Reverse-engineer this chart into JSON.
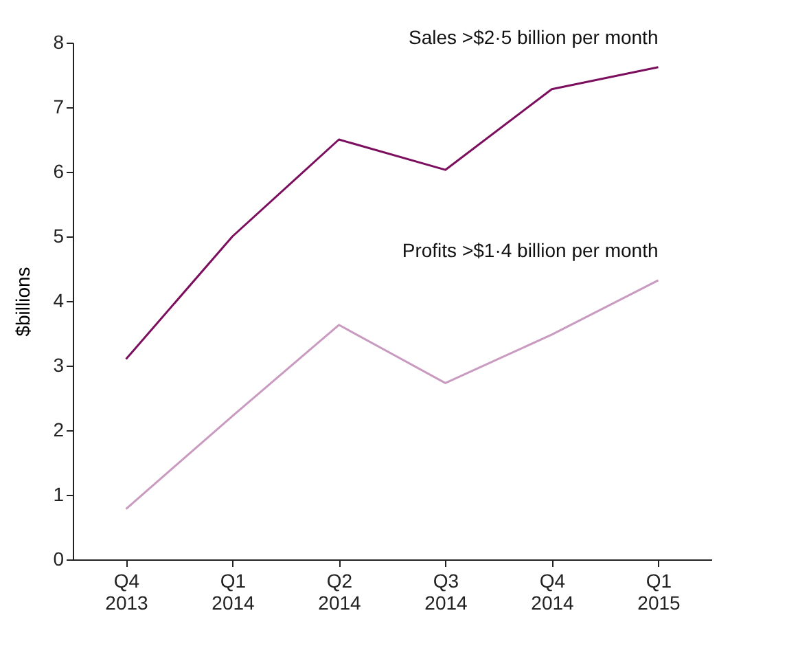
{
  "chart_data": {
    "type": "line",
    "ylabel": "$billions",
    "categories": [
      "Q4 2013",
      "Q1 2014",
      "Q2 2014",
      "Q3 2014",
      "Q4 2014",
      "Q1 2015"
    ],
    "series": [
      {
        "name": "Sales >$2·5 billion per month",
        "color": "#7b0f5e",
        "values": [
          3.1,
          5.0,
          6.5,
          6.03,
          7.28,
          7.62
        ]
      },
      {
        "name": "Profits >$1·4 billion per month",
        "color": "#c99bc0",
        "values": [
          0.78,
          2.22,
          3.63,
          2.73,
          3.48,
          4.32
        ]
      }
    ],
    "ylim": [
      0,
      8
    ],
    "yticks": [
      0,
      1,
      2,
      3,
      4,
      5,
      6,
      7,
      8
    ],
    "grid": false,
    "marker": "none",
    "line_style": "solid"
  }
}
